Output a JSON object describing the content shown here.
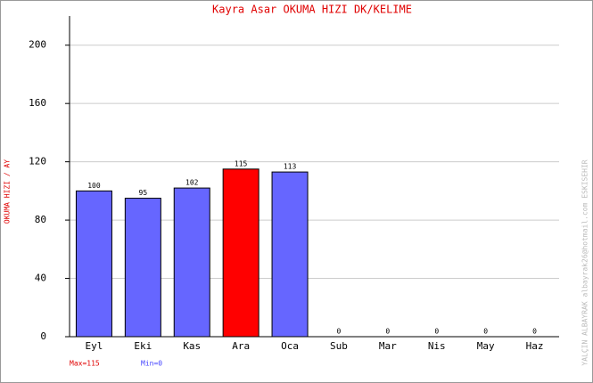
{
  "chart_data": {
    "type": "bar",
    "title": "Kayra Asar   OKUMA HIZI  DK/KELIME",
    "y_label": "OKUMA HIZI / AY",
    "credit": "YALÇIN ALBAYRAK   albayrak26@hotmail.com   ESKISEHIR",
    "max_label": "Max=115",
    "min_label": "Min=0",
    "categories": [
      "Eyl",
      "Eki",
      "Kas",
      "Ara",
      "Oca",
      "Sub",
      "Mar",
      "Nis",
      "May",
      "Haz"
    ],
    "values": [
      100,
      95,
      102,
      115,
      113,
      0,
      0,
      0,
      0,
      0
    ],
    "colors": [
      "#6666ff",
      "#6666ff",
      "#6666ff",
      "#ff0000",
      "#6666ff",
      "#6666ff",
      "#6666ff",
      "#6666ff",
      "#6666ff",
      "#6666ff"
    ],
    "ylim": [
      0,
      220
    ],
    "yticks": [
      0,
      40,
      80,
      120,
      160,
      200
    ],
    "grid": true
  }
}
